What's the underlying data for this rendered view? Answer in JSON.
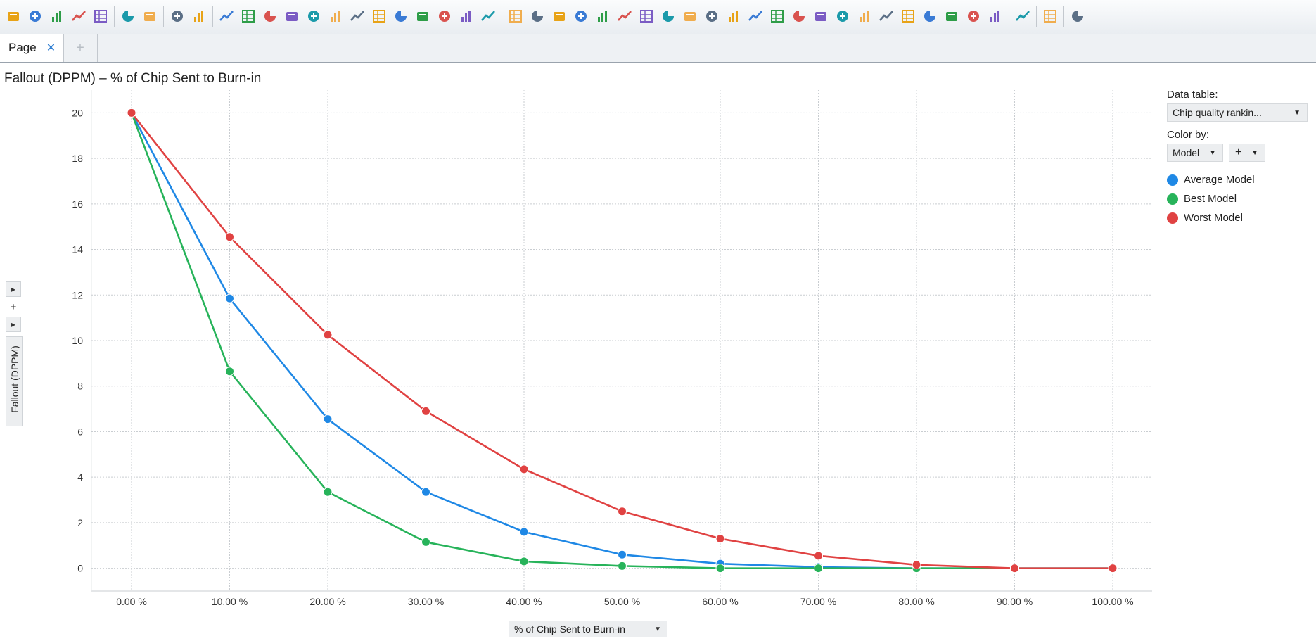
{
  "toolbar": {
    "icons": [
      "open-folder-icon",
      "add-data-icon",
      "reload-icon",
      "save-icon",
      "export-pdf-icon",
      "copy-icon",
      "paste-icon",
      "undo-icon",
      "redo-icon",
      "reset-icon",
      "filter-icon",
      "marking-icon",
      "details-icon",
      "tag-icon",
      "bookmark-icon",
      "copy-visual-icon",
      "http-icon",
      "book-icon",
      "text-area-icon",
      "comment-icon",
      "contrast-icon",
      "new-visual-icon",
      "insight-icon",
      "table-icon",
      "crosstab-icon",
      "graphical-table-icon",
      "bar-chart-icon",
      "combination-chart-icon",
      "line-chart-icon",
      "combo-chart-icon",
      "pie-chart-icon",
      "scatter-plot-icon",
      "3d-scatter-icon",
      "map-chart-icon",
      "treemap-icon",
      "heat-map-icon",
      "summary-table-icon",
      "parallel-coordinates-icon",
      "kpi-chart-icon",
      "box-plot-icon",
      "waterfall-icon",
      "percent-chart-icon",
      "network-icon",
      "cluster-icon",
      "palette-icon",
      "settings-icon",
      "text-visual-icon",
      "export-icon"
    ]
  },
  "tabs": {
    "page_label": "Page",
    "close_glyph": "✕",
    "new_glyph": "+"
  },
  "chart": {
    "title": "Fallout (DPPM) – % of Chip Sent to Burn-in",
    "ylabel": "Fallout (DPPM)",
    "xlabel": "% of Chip Sent to Burn-in",
    "y_collapse_glyph": "▸",
    "y_add_glyph": "+",
    "caret": "▼"
  },
  "legend_panel": {
    "data_table_label": "Data table:",
    "data_table_value": "Chip quality rankin...",
    "color_by_label": "Color by:",
    "color_by_value": "Model",
    "add_glyph": "+"
  },
  "chart_data": {
    "type": "line",
    "title": "Fallout (DPPM) – % of Chip Sent to Burn-in",
    "xlabel": "% of Chip Sent to Burn-in",
    "ylabel": "Fallout (DPPM)",
    "x": [
      "0.00 %",
      "10.00 %",
      "20.00 %",
      "30.00 %",
      "40.00 %",
      "50.00 %",
      "60.00 %",
      "70.00 %",
      "80.00 %",
      "90.00 %",
      "100.00 %"
    ],
    "ylim": [
      -1,
      21
    ],
    "yticks": [
      0,
      2,
      4,
      6,
      8,
      10,
      12,
      14,
      16,
      18,
      20
    ],
    "grid": true,
    "legend_position": "right",
    "series": [
      {
        "name": "Average Model",
        "color": "#1f88e5",
        "values": [
          20,
          11.85,
          6.55,
          3.35,
          1.6,
          0.6,
          0.2,
          0.05,
          0,
          0,
          0
        ]
      },
      {
        "name": "Best Model",
        "color": "#27b35a",
        "values": [
          20,
          8.65,
          3.35,
          1.15,
          0.3,
          0.1,
          0,
          0,
          0,
          0,
          0
        ]
      },
      {
        "name": "Worst Model",
        "color": "#e04242",
        "values": [
          20,
          14.55,
          10.25,
          6.9,
          4.35,
          2.5,
          1.3,
          0.55,
          0.15,
          0,
          0
        ]
      }
    ]
  }
}
